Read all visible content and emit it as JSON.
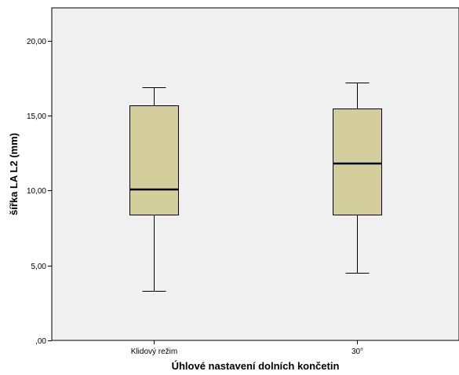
{
  "chart_data": {
    "type": "boxplot",
    "xlabel": "Úhlové nastavení dolních končetin",
    "ylabel": "šířka LA L2 (mm)",
    "ylim": [
      0,
      22.2
    ],
    "yticks": [
      0,
      5,
      10,
      15,
      20
    ],
    "ytick_labels": [
      ",00",
      "5,00",
      "10,00",
      "15,00",
      "20,00"
    ],
    "grid": false,
    "categories": [
      "Klidový režim",
      "30°"
    ],
    "boxes": [
      {
        "category": "Klidový režim",
        "min": 3.3,
        "q1": 8.4,
        "median": 10.1,
        "q3": 15.7,
        "max": 16.9
      },
      {
        "category": "30°",
        "min": 4.5,
        "q1": 8.4,
        "median": 11.8,
        "q3": 15.5,
        "max": 17.2
      }
    ],
    "colors": {
      "plot_background": "#f0f0f0",
      "box_fill": "#d3ce9c",
      "stroke": "#000000"
    }
  }
}
